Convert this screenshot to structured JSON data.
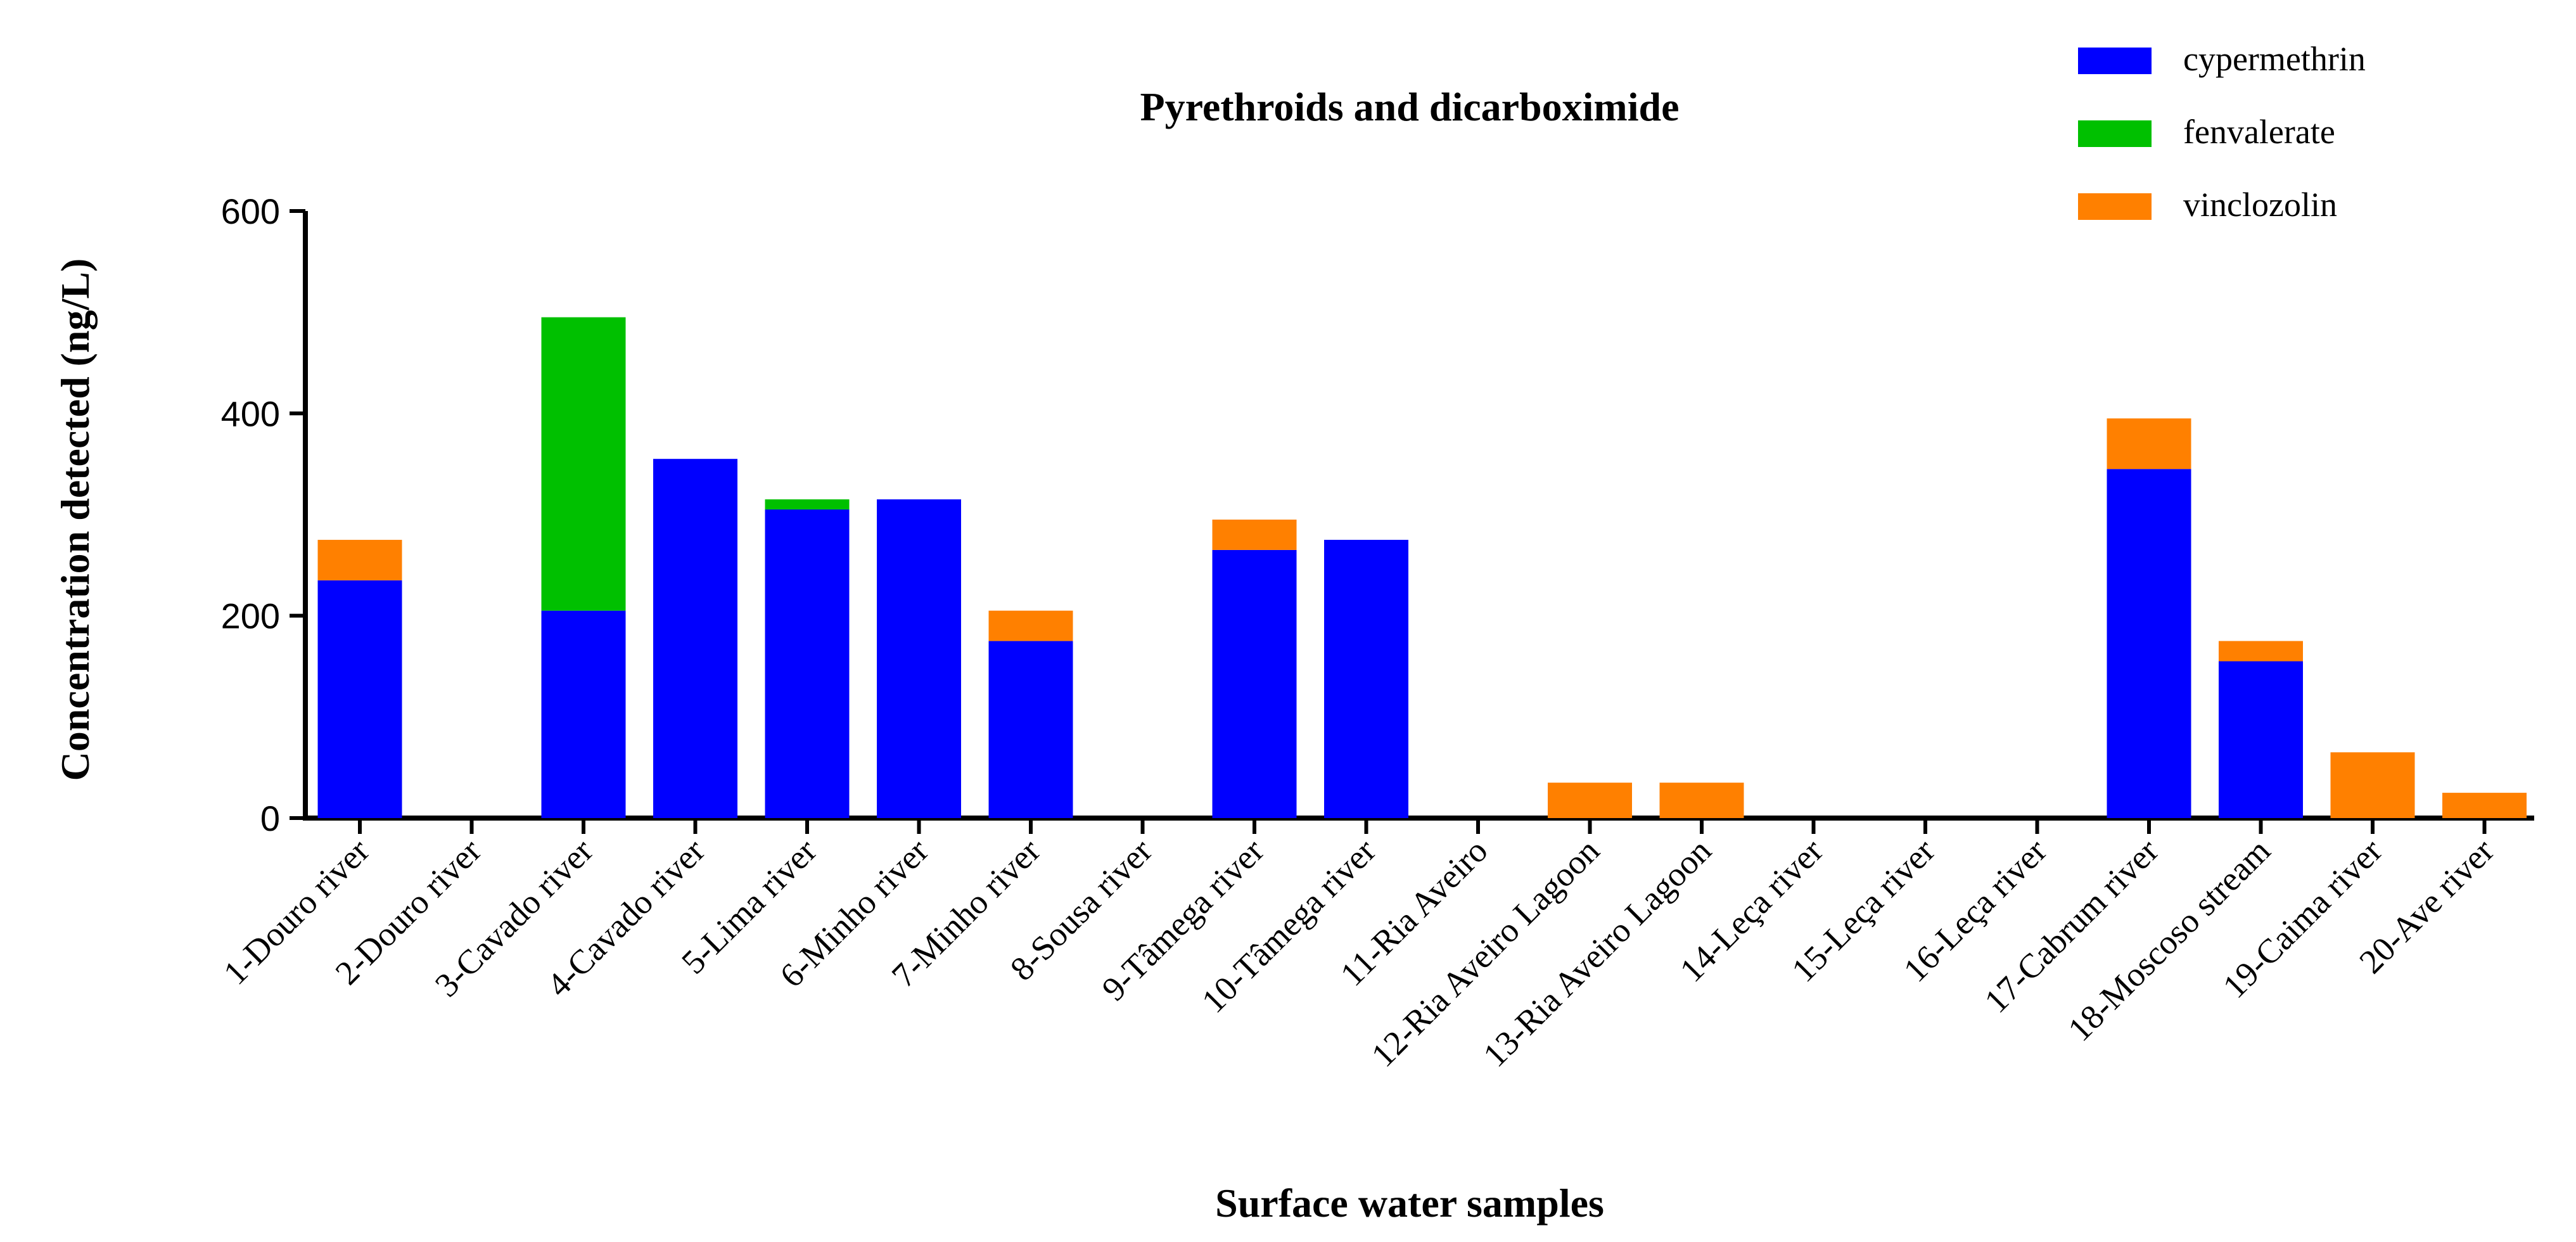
{
  "chart_data": {
    "type": "bar",
    "stacked": true,
    "title": "Pyrethroids and dicarboximide",
    "xlabel": "Surface water samples",
    "ylabel": "Concentration detected (ng/L)",
    "ylim": [
      0,
      600
    ],
    "yticks": [
      0,
      200,
      400,
      600
    ],
    "legend_position": "top-right",
    "categories": [
      "1-Douro river",
      "2-Douro river",
      "3-Cavado river",
      "4-Cavado river",
      "5-Lima river",
      "6-Minho river",
      "7-Minho river",
      "8-Sousa river",
      "9-Tâmega river",
      "10-Tâmega river",
      "11-Ria Aveiro",
      "12-Ria Aveiro Lagoon",
      "13-Ria Aveiro Lagoon",
      "14-Leça river",
      "15-Leça river",
      "16-Leça river",
      "17-Cabrum river",
      "18-Moscoso stream",
      "19-Caima river",
      "20-Ave river"
    ],
    "series": [
      {
        "name": "cypermethrin",
        "color": "#0000ff",
        "values": [
          235,
          0,
          205,
          355,
          305,
          315,
          175,
          0,
          265,
          275,
          0,
          0,
          0,
          0,
          0,
          0,
          345,
          155,
          0,
          0
        ]
      },
      {
        "name": "fenvalerate",
        "color": "#00c000",
        "values": [
          0,
          0,
          290,
          0,
          10,
          0,
          0,
          0,
          0,
          0,
          0,
          0,
          0,
          0,
          0,
          0,
          0,
          0,
          0,
          0
        ]
      },
      {
        "name": "vinclozolin",
        "color": "#ff8000",
        "values": [
          40,
          0,
          0,
          0,
          0,
          0,
          30,
          0,
          30,
          0,
          0,
          35,
          35,
          0,
          0,
          0,
          50,
          20,
          65,
          25
        ]
      }
    ]
  }
}
